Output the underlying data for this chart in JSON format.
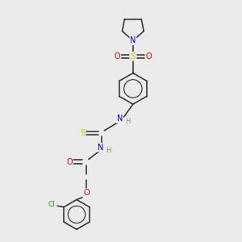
{
  "bg_color": "#ebebeb",
  "bond_color": "#2a2a2a",
  "colors": {
    "N": "#0000ee",
    "O": "#ee0000",
    "S_sulfonyl": "#cccc00",
    "S_thio": "#cccc00",
    "Cl": "#00bb00",
    "H": "#888888"
  }
}
